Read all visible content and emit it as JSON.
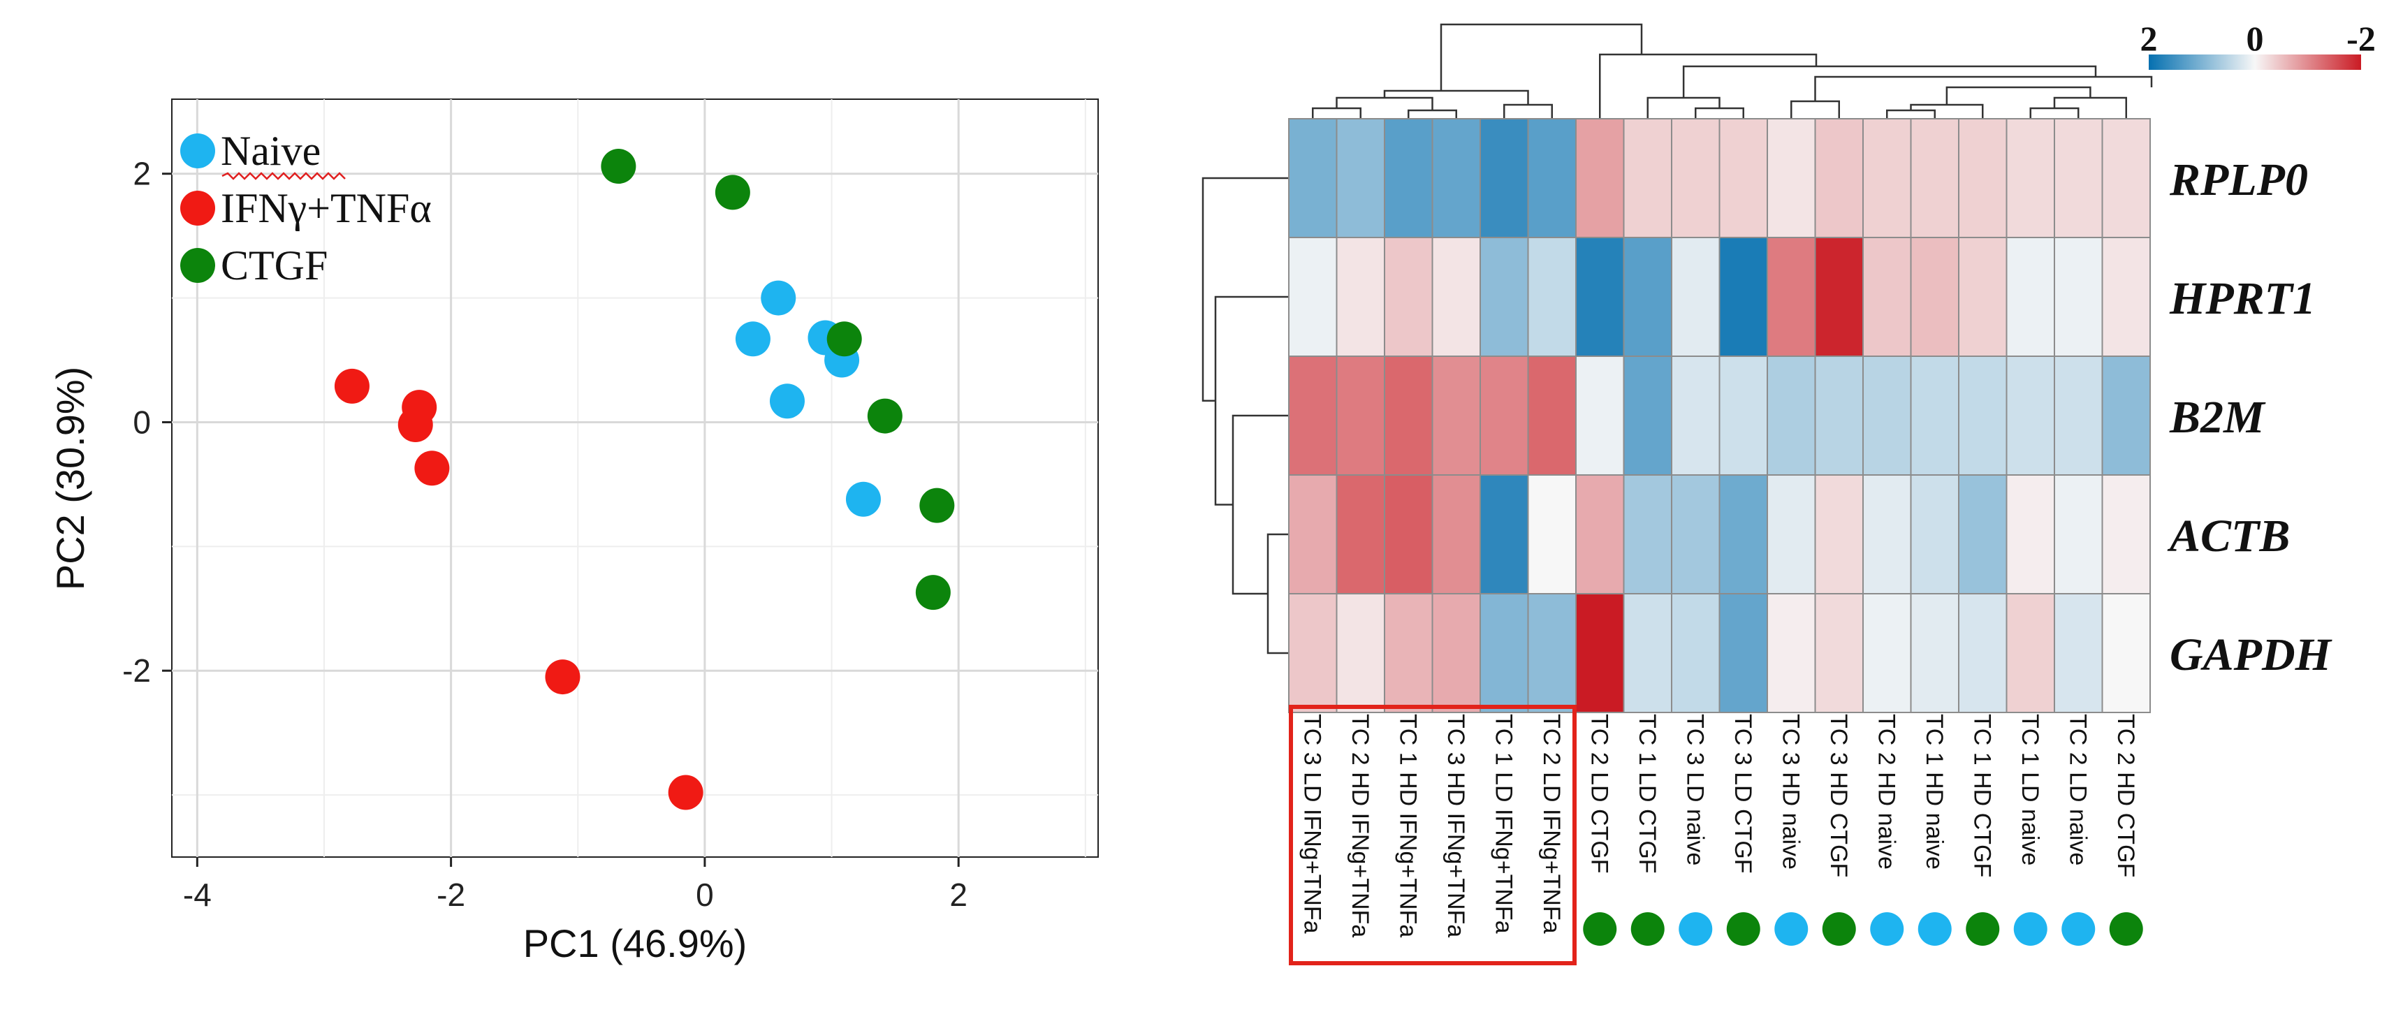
{
  "chart_data": [
    {
      "type": "scatter",
      "title": "",
      "xlabel": "PC1 (46.9%)",
      "ylabel": "PC2 (30.9%)",
      "xlim": [
        -4.2,
        3.1
      ],
      "ylim": [
        -3.5,
        2.6
      ],
      "xticks": [
        -4,
        -2,
        0,
        2
      ],
      "yticks": [
        2,
        0,
        -2
      ],
      "xtick_labels": [
        "-4",
        "-2",
        "0",
        "2"
      ],
      "ytick_labels": [
        "2",
        "0",
        "-2"
      ],
      "grid": true,
      "legend_position": "top-left",
      "series": [
        {
          "name": "Naive",
          "color": "#1EB4F0",
          "points": [
            [
              0.58,
              1.0
            ],
            [
              0.38,
              0.67
            ],
            [
              0.95,
              0.68
            ],
            [
              1.08,
              0.5
            ],
            [
              0.65,
              0.17
            ],
            [
              1.25,
              -0.62
            ]
          ]
        },
        {
          "name": "IFNγ+TNFα",
          "color": "#F01A14",
          "points": [
            [
              -2.78,
              0.29
            ],
            [
              -2.25,
              0.12
            ],
            [
              -2.28,
              -0.02
            ],
            [
              -2.15,
              -0.37
            ],
            [
              -1.12,
              -2.05
            ],
            [
              -0.15,
              -2.98
            ]
          ]
        },
        {
          "name": "CTGF",
          "color": "#0C840C",
          "points": [
            [
              -0.68,
              2.06
            ],
            [
              0.22,
              1.85
            ],
            [
              1.1,
              0.67
            ],
            [
              1.42,
              0.05
            ],
            [
              1.83,
              -0.67
            ],
            [
              1.8,
              -1.37
            ]
          ]
        }
      ]
    },
    {
      "type": "heatmap",
      "title": "",
      "colorbar": {
        "ticks": [
          "2",
          "0",
          "-2"
        ],
        "colors": [
          "#0570B0",
          "#F7F7F7",
          "#CA1B24"
        ]
      },
      "rows": [
        "RPLP0",
        "HPRT1",
        "B2M",
        "ACTB",
        "GAPDH"
      ],
      "columns": [
        "TC 3 LD IFNg+TNFa",
        "TC 2 HD IFNg+TNFa",
        "TC 1 HD IFNg+TNFa",
        "TC 3 HD IFNg+TNFa",
        "TC 1 LD IFNg+TNFa",
        "TC 2 LD IFNg+TNFa",
        "TC 2 LD CTGF",
        "TC 1 LD CTGF",
        "TC 3 LD naive",
        "TC 3 LD CTGF",
        "TC 3 HD naive",
        "TC 3 HD CTGF",
        "TC 2 HD naive",
        "TC 1 HD naive",
        "TC 1 HD CTGF",
        "TC 1 LD naive",
        "TC 2 LD naive",
        "TC 2 HD CTGF"
      ],
      "column_groups": [
        "CTGF",
        "CTGF",
        "Naive",
        "CTGF",
        "Naive",
        "CTGF",
        "Naive",
        "Naive",
        "CTGF",
        "Naive",
        "Naive",
        "CTGF"
      ],
      "values": [
        [
          1.2,
          1.0,
          1.5,
          1.4,
          1.8,
          1.5,
          -0.9,
          -0.4,
          -0.4,
          -0.4,
          -0.2,
          -0.5,
          -0.4,
          -0.4,
          -0.4,
          -0.3,
          -0.3,
          -0.3
        ],
        [
          0.1,
          -0.2,
          -0.5,
          -0.2,
          1.0,
          0.5,
          2.0,
          1.5,
          0.2,
          2.1,
          -1.3,
          -2.2,
          -0.5,
          -0.6,
          -0.4,
          0.1,
          0.1,
          -0.2
        ],
        [
          -1.4,
          -1.3,
          -1.5,
          -1.1,
          -1.2,
          -1.5,
          0.1,
          1.4,
          0.3,
          0.4,
          0.7,
          0.6,
          0.6,
          0.5,
          0.5,
          0.4,
          0.4,
          1.0
        ],
        [
          -0.8,
          -1.5,
          -1.6,
          -1.1,
          1.9,
          0.0,
          -0.8,
          0.8,
          0.8,
          1.3,
          0.2,
          -0.3,
          0.2,
          0.4,
          0.9,
          -0.1,
          0.1,
          -0.1
        ],
        [
          -0.5,
          -0.2,
          -0.7,
          -0.8,
          1.1,
          1.0,
          -2.3,
          0.4,
          0.5,
          1.4,
          -0.1,
          -0.3,
          0.1,
          0.2,
          0.3,
          -0.4,
          0.3,
          0.0
        ]
      ]
    }
  ]
}
